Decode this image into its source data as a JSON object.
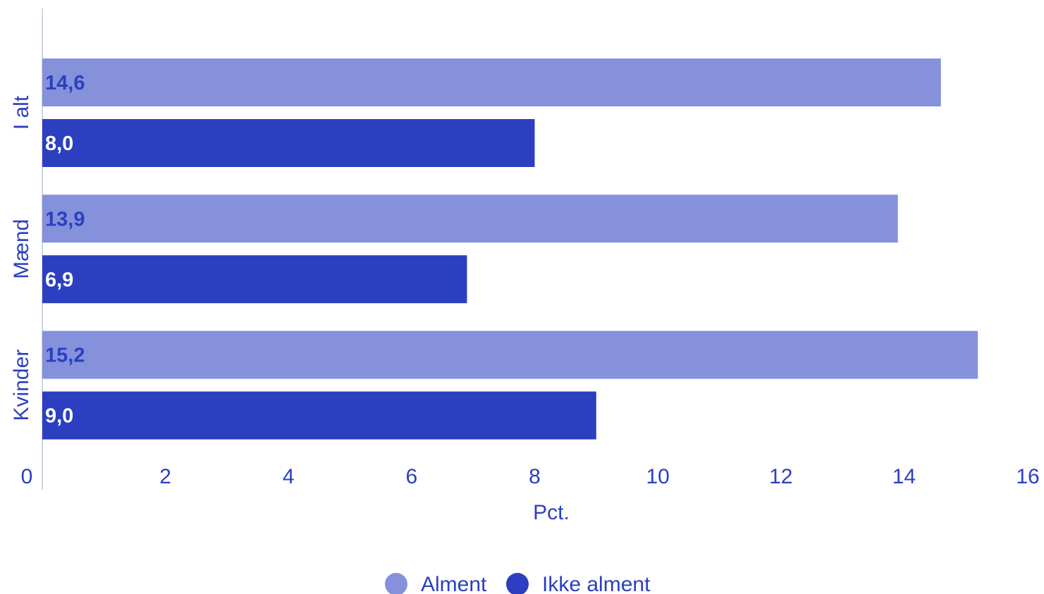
{
  "chart_data": {
    "type": "bar",
    "orientation": "horizontal",
    "categories": [
      "I alt",
      "Mænd",
      "Kvinder"
    ],
    "series": [
      {
        "name": "Alment",
        "values": [
          14.6,
          13.9,
          15.2
        ],
        "labels": [
          "14,6",
          "13,9",
          "15,2"
        ],
        "color": "#8591db",
        "label_color": "#2b3fc0"
      },
      {
        "name": "Ikke alment",
        "values": [
          8.0,
          6.9,
          9.0
        ],
        "labels": [
          "8,0",
          "6,9",
          "9,0"
        ],
        "color": "#2b3fc0",
        "label_color": "#ffffff"
      }
    ],
    "xlabel": "Pct.",
    "xlim": [
      0,
      16
    ],
    "xticks": [
      "0",
      "2",
      "4",
      "6",
      "8",
      "10",
      "12",
      "14",
      "16"
    ],
    "grid": false,
    "legend_position": "bottom-center",
    "axis_color": "#2b3fc0"
  }
}
